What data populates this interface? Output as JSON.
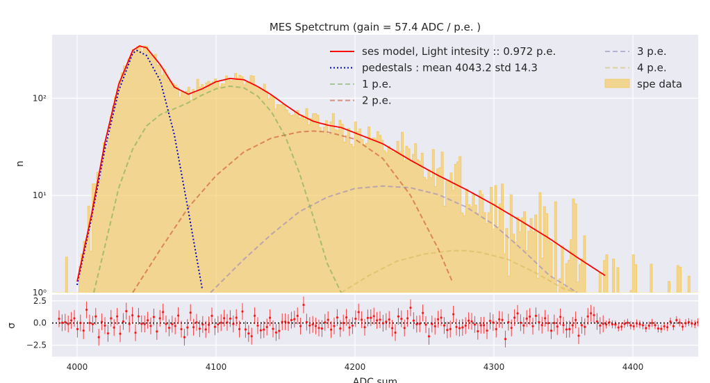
{
  "chart_data": {
    "type": "histogram_with_fit",
    "title": "MES Spetctrum (gain = 57.4 ADC / p.e. )",
    "xlabel": "ADC sum",
    "main_panel": {
      "ylabel": "n",
      "yscale": "log",
      "ylim": [
        1,
        450
      ],
      "yticks": [
        1,
        10,
        100
      ],
      "yticklabels": [
        "10⁰",
        "10¹",
        "10²"
      ]
    },
    "residual_panel": {
      "ylabel": "σ",
      "ylim": [
        -3.8,
        3.2
      ],
      "yticks": [
        2.5,
        0.0,
        -2.5
      ],
      "yticklabels": [
        "2.5",
        "0.0",
        "−2.5"
      ]
    },
    "xlim": [
      3982,
      4447
    ],
    "xticks": [
      4000,
      4100,
      4200,
      4300,
      4400
    ],
    "xticklabels": [
      "4000",
      "4100",
      "4200",
      "4300",
      "4400"
    ],
    "grid": true,
    "legend_position": "top-right",
    "model_params": {
      "pedestal_mean": 4043.2,
      "pedestal_std": 14.3,
      "gain": 57.4,
      "light_intensity": 0.972
    },
    "series": [
      {
        "name": "ses model,  Light intesity :: 0.972 p.e.",
        "color": "#ff0000",
        "style": "solid",
        "x": [
          4000,
          4010,
          4020,
          4030,
          4040,
          4045,
          4050,
          4060,
          4070,
          4080,
          4090,
          4100,
          4110,
          4120,
          4130,
          4140,
          4150,
          4160,
          4170,
          4180,
          4190,
          4200,
          4220,
          4240,
          4260,
          4280,
          4300,
          4320,
          4340,
          4360,
          4380
        ],
        "y": [
          1.3,
          6,
          35,
          140,
          310,
          345,
          330,
          220,
          130,
          110,
          125,
          148,
          160,
          155,
          132,
          108,
          85,
          68,
          58,
          53,
          50,
          44,
          34,
          23,
          16,
          11.5,
          8,
          5.4,
          3.6,
          2.3,
          1.5
        ]
      },
      {
        "name": "pedestals : mean 4043.2 std 14.3",
        "color": "#0000cc",
        "style": "dotted",
        "x": [
          4000,
          4010,
          4020,
          4030,
          4040,
          4043,
          4050,
          4060,
          4070,
          4080,
          4090
        ],
        "y": [
          1.2,
          5.5,
          30,
          120,
          290,
          310,
          275,
          150,
          42,
          7,
          1.1
        ]
      },
      {
        "name": "1 p.e.",
        "color": "#6aa84f",
        "style": "dashed",
        "x": [
          4012,
          4020,
          4030,
          4040,
          4050,
          4060,
          4070,
          4080,
          4090,
          4100,
          4110,
          4120,
          4130,
          4140,
          4150,
          4160,
          4170,
          4180,
          4190
        ],
        "y": [
          1.0,
          3,
          12,
          30,
          52,
          68,
          78,
          90,
          108,
          125,
          133,
          128,
          105,
          72,
          40,
          17,
          6,
          2,
          1.0
        ]
      },
      {
        "name": "2 p.e.",
        "color": "#cc4125",
        "style": "dashed",
        "x": [
          4040,
          4060,
          4080,
          4100,
          4120,
          4140,
          4160,
          4170,
          4180,
          4200,
          4220,
          4240,
          4260,
          4270
        ],
        "y": [
          1.0,
          2.8,
          7.5,
          16,
          28,
          39,
          45,
          46,
          45,
          38,
          24,
          10,
          2.8,
          1.3
        ]
      },
      {
        "name": "3 p.e.",
        "color": "#8e7cc3",
        "style": "dashed",
        "x": [
          4096,
          4120,
          4140,
          4160,
          4180,
          4200,
          4220,
          4240,
          4260,
          4280,
          4300,
          4320,
          4340,
          4360
        ],
        "y": [
          1.0,
          2.2,
          4,
          6.8,
          9.6,
          11.8,
          12.5,
          12,
          10.2,
          7.6,
          5,
          2.8,
          1.5,
          1.0
        ]
      },
      {
        "name": "4 p.e.",
        "color": "#d6b656",
        "style": "dashed",
        "x": [
          4190,
          4210,
          4230,
          4250,
          4270,
          4280,
          4290,
          4310,
          4330,
          4350,
          4360
        ],
        "y": [
          1.0,
          1.5,
          2.1,
          2.5,
          2.7,
          2.7,
          2.6,
          2.2,
          1.6,
          1.1,
          1.0
        ]
      }
    ],
    "histogram": {
      "name": "spe data",
      "color": "#f6c342",
      "envelope_x": [
        3985,
        4000,
        4010,
        4020,
        4030,
        4040,
        4050,
        4060,
        4070,
        4080,
        4090,
        4100,
        4110,
        4120,
        4130,
        4140,
        4150,
        4160,
        4170,
        4180,
        4190,
        4200,
        4220,
        4240,
        4260,
        4280,
        4300,
        4320,
        4340,
        4360,
        4380,
        4400,
        4420,
        4447
      ],
      "envelope_y": [
        1.2,
        1.3,
        6,
        35,
        140,
        310,
        330,
        220,
        130,
        110,
        125,
        148,
        160,
        155,
        132,
        108,
        85,
        68,
        58,
        53,
        50,
        44,
        34,
        23,
        16,
        11.5,
        8,
        5.4,
        3.6,
        2.3,
        1.5,
        1.3,
        1.2,
        1.2
      ]
    }
  }
}
